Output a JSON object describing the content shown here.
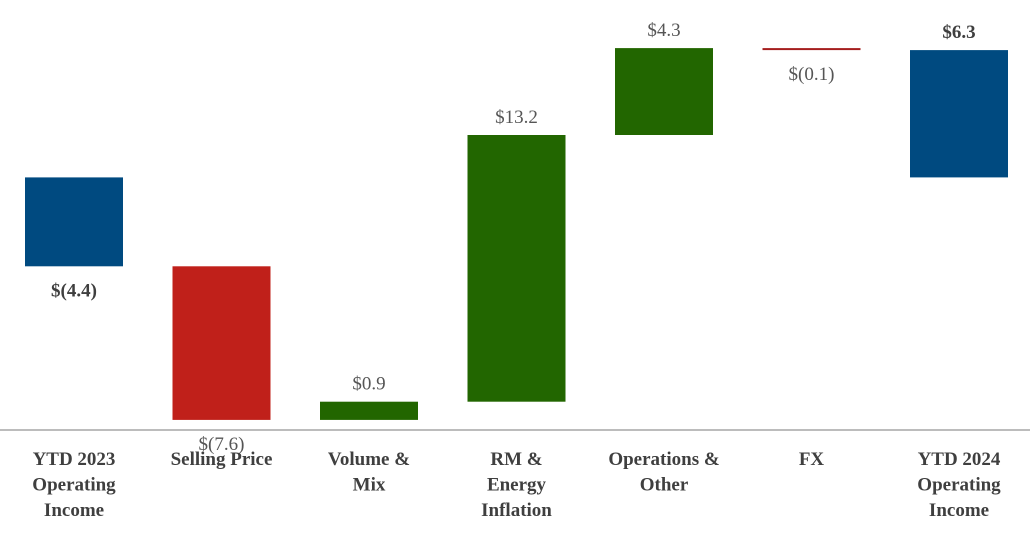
{
  "chart_data": {
    "type": "waterfall",
    "title": "",
    "xlabel": "",
    "ylabel": "",
    "ylim": [
      -12.5,
      6.8
    ],
    "grid": false,
    "legend": "none",
    "bars": [
      {
        "category": [
          "YTD 2023",
          "Operating",
          "Income"
        ],
        "value": -4.4,
        "label": "$(4.4)",
        "kind": "total",
        "color": "#004A80",
        "bold": true
      },
      {
        "category": [
          "Selling Price"
        ],
        "value": -7.6,
        "label": "$(7.6)",
        "kind": "delta",
        "color": "#C0201A",
        "bold": false
      },
      {
        "category": [
          "Volume &",
          "Mix"
        ],
        "value": 0.9,
        "label": "$0.9",
        "kind": "delta",
        "color": "#226600",
        "bold": false
      },
      {
        "category": [
          "RM &",
          "Energy",
          "Inflation"
        ],
        "value": 13.2,
        "label": "$13.2",
        "kind": "delta",
        "color": "#226600",
        "bold": false
      },
      {
        "category": [
          "Operations &",
          "Other"
        ],
        "value": 4.3,
        "label": "$4.3",
        "kind": "delta",
        "color": "#226600",
        "bold": false
      },
      {
        "category": [
          "FX"
        ],
        "value": -0.1,
        "label": "$(0.1)",
        "kind": "delta",
        "color": "#A51E1E",
        "bold": false
      },
      {
        "category": [
          "YTD 2024",
          "Operating",
          "Income"
        ],
        "value": 6.3,
        "label": "$6.3",
        "kind": "total",
        "color": "#004A80",
        "bold": true
      }
    ]
  }
}
